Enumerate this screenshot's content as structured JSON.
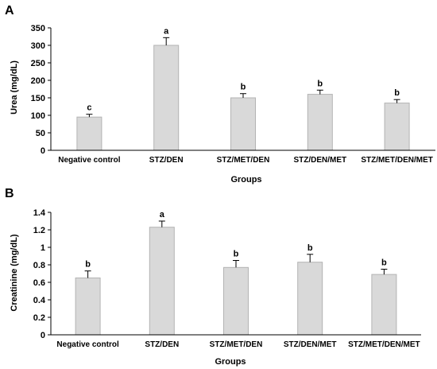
{
  "chart_data": [
    {
      "panel": "A",
      "type": "bar",
      "categories": [
        "Negative control",
        "STZ/DEN",
        "STZ/MET/DEN",
        "STZ/DEN/MET",
        "STZ/MET/DEN/MET"
      ],
      "values": [
        95,
        300,
        150,
        160,
        135
      ],
      "errors": [
        8,
        22,
        12,
        12,
        10
      ],
      "significance": [
        "c",
        "a",
        "b",
        "b",
        "b"
      ],
      "xlabel": "Groups",
      "ylabel": "Urea (mg/dL)",
      "ylim": [
        0,
        350
      ],
      "yticks": [
        "0",
        "50",
        "100",
        "150",
        "200",
        "250",
        "300",
        "350"
      ],
      "bar_color": "#d9d9d9",
      "bar_edge_color": "#b3b3b3"
    },
    {
      "panel": "B",
      "type": "bar",
      "categories": [
        "Negative control",
        "STZ/DEN",
        "STZ/MET/DEN",
        "STZ/DEN/MET",
        "STZ/MET/DEN/MET"
      ],
      "values": [
        0.65,
        1.23,
        0.77,
        0.83,
        0.69
      ],
      "errors": [
        0.08,
        0.07,
        0.08,
        0.09,
        0.06
      ],
      "significance": [
        "b",
        "a",
        "b",
        "b",
        "b"
      ],
      "xlabel": "Groups",
      "ylabel": "Creatinine (mg/dL)",
      "ylim": [
        0,
        1.4
      ],
      "yticks": [
        "0",
        "0.2",
        "0.4",
        "0.6",
        "0.8",
        "1",
        "1.2",
        "1.4"
      ],
      "bar_color": "#d9d9d9",
      "bar_edge_color": "#b3b3b3"
    }
  ]
}
